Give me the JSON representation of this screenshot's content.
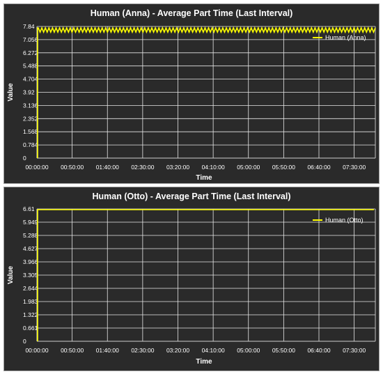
{
  "chart_data": [
    {
      "type": "line",
      "title": "Human (Anna) - Average Part Time (Last Interval)",
      "xlabel": "Time",
      "ylabel": "Value",
      "ylim": [
        0,
        7.84
      ],
      "y_ticks": [
        "0",
        "0.784",
        "1.568",
        "2.352",
        "3.136",
        "3.92",
        "4.704",
        "5.488",
        "6.272",
        "7.056",
        "7.84"
      ],
      "x_ticks": [
        "00:00:00",
        "00:50:00",
        "01:40:00",
        "02:30:00",
        "03:20:00",
        "04:10:00",
        "05:00:00",
        "05:50:00",
        "06:40:00",
        "07:30:00"
      ],
      "grid": true,
      "legend_position": "top-right",
      "line_color": "#ffff00",
      "series": [
        {
          "name": "Human (Anna)",
          "pattern": "oscillating",
          "base_level": 7.84,
          "oscillation_low": 7.5,
          "cycles": 95
        }
      ]
    },
    {
      "type": "line",
      "title": "Human (Otto) - Average Part Time (Last Interval)",
      "xlabel": "Time",
      "ylabel": "Value",
      "ylim": [
        0,
        6.61
      ],
      "y_ticks": [
        "0",
        "0.661",
        "1.322",
        "1.983",
        "2.644",
        "3.305",
        "3.966",
        "4.627",
        "5.288",
        "5.949",
        "6.61"
      ],
      "x_ticks": [
        "00:00:00",
        "00:50:00",
        "01:40:00",
        "02:30:00",
        "03:20:00",
        "04:10:00",
        "05:00:00",
        "05:50:00",
        "06:40:00",
        "07:30:00"
      ],
      "grid": true,
      "legend_position": "top-right",
      "line_color": "#ffff00",
      "series": [
        {
          "name": "Human (Otto)",
          "pattern": "step",
          "x": [
            "00:00:00",
            "00:00:00",
            "07:58:00"
          ],
          "values": [
            0,
            6.61,
            6.61
          ]
        }
      ]
    }
  ]
}
